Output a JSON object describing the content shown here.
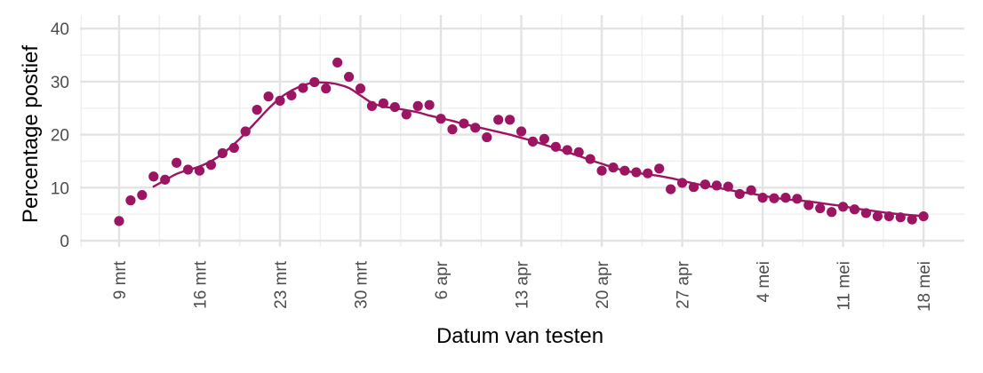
{
  "chart_data": {
    "type": "scatter",
    "xlabel": "Datum van testen",
    "ylabel": "Percentage postief",
    "ylim": [
      0,
      40
    ],
    "y_ticks": [
      0,
      10,
      20,
      30,
      40
    ],
    "x_ticks": [
      {
        "day": 0,
        "label": "9 mrt"
      },
      {
        "day": 7,
        "label": "16 mrt"
      },
      {
        "day": 14,
        "label": "23 mrt"
      },
      {
        "day": 21,
        "label": "30 mrt"
      },
      {
        "day": 28,
        "label": "6 apr"
      },
      {
        "day": 35,
        "label": "13 apr"
      },
      {
        "day": 42,
        "label": "20 apr"
      },
      {
        "day": 49,
        "label": "27 apr"
      },
      {
        "day": 56,
        "label": "4 mei"
      },
      {
        "day": 63,
        "label": "11 mei"
      },
      {
        "day": 70,
        "label": "18 mei"
      }
    ],
    "xlim_day": [
      -3.3,
      73.5
    ],
    "grid": true,
    "colors": {
      "series": "#9c1562"
    },
    "series": [
      {
        "type": "scatter",
        "x_day": [
          0,
          1,
          2,
          3,
          4,
          5,
          6,
          7,
          8,
          9,
          10,
          11,
          12,
          13,
          14,
          15,
          16,
          17,
          18,
          19,
          20,
          21,
          22,
          23,
          24,
          25,
          26,
          27,
          28,
          29,
          30,
          31,
          32,
          33,
          34,
          35,
          36,
          37,
          38,
          39,
          40,
          41,
          42,
          43,
          44,
          45,
          46,
          47,
          48,
          49,
          50,
          51,
          52,
          53,
          54,
          55,
          56,
          57,
          58,
          59,
          60,
          61,
          62,
          63,
          64,
          65,
          66,
          67,
          68,
          69,
          70
        ],
        "values": [
          3.7,
          7.6,
          8.6,
          12.1,
          11.5,
          14.7,
          13.4,
          13.2,
          14.3,
          16.5,
          17.5,
          20.6,
          24.7,
          27.2,
          26.4,
          27.4,
          28.8,
          29.9,
          28.7,
          33.6,
          30.9,
          28.7,
          25.4,
          25.9,
          25.2,
          23.8,
          25.4,
          25.6,
          23.0,
          21.0,
          22.1,
          21.3,
          19.5,
          22.8,
          22.8,
          20.6,
          18.7,
          19.2,
          17.7,
          17.1,
          16.7,
          15.4,
          13.2,
          13.8,
          13.2,
          12.9,
          12.7,
          13.6,
          9.7,
          10.9,
          10.1,
          10.6,
          10.4,
          10.2,
          8.8,
          9.5,
          8.1,
          8.0,
          8.1,
          7.9,
          6.7,
          6.1,
          5.4,
          6.4,
          5.9,
          5.2,
          4.6,
          4.6,
          4.4,
          4.0,
          4.6
        ]
      },
      {
        "type": "line",
        "x_day": [
          3,
          4,
          5,
          6,
          7,
          8,
          9,
          10,
          11,
          12,
          13,
          14,
          15,
          16,
          17,
          18,
          19,
          20,
          21,
          22,
          23,
          24,
          25,
          26,
          27,
          28,
          29,
          30,
          31,
          32,
          33,
          34,
          35,
          36,
          37,
          38,
          39,
          40,
          41,
          42,
          43,
          44,
          45,
          46,
          47,
          48,
          49,
          50,
          51,
          52,
          53,
          54,
          55,
          56,
          57,
          58,
          59,
          60,
          61,
          62,
          63,
          64,
          65,
          66,
          67,
          68,
          69,
          70
        ],
        "values": [
          10.2,
          11.4,
          12.6,
          13.3,
          14.0,
          15.0,
          16.4,
          18.2,
          20.3,
          22.6,
          24.9,
          26.9,
          28.3,
          29.3,
          29.8,
          29.8,
          29.5,
          28.8,
          27.4,
          26.0,
          25.3,
          25.0,
          24.6,
          24.2,
          23.6,
          23.1,
          22.6,
          22.0,
          21.5,
          21.0,
          20.5,
          20.0,
          19.4,
          18.8,
          18.1,
          17.4,
          16.7,
          16.0,
          15.2,
          14.5,
          13.8,
          13.2,
          12.8,
          12.5,
          12.2,
          11.8,
          11.3,
          10.8,
          10.4,
          10.0,
          9.6,
          9.2,
          8.9,
          8.5,
          8.1,
          7.8,
          7.6,
          7.4,
          7.1,
          6.8,
          6.5,
          6.1,
          5.8,
          5.5,
          5.2,
          5.0,
          4.8,
          4.6
        ]
      }
    ]
  }
}
